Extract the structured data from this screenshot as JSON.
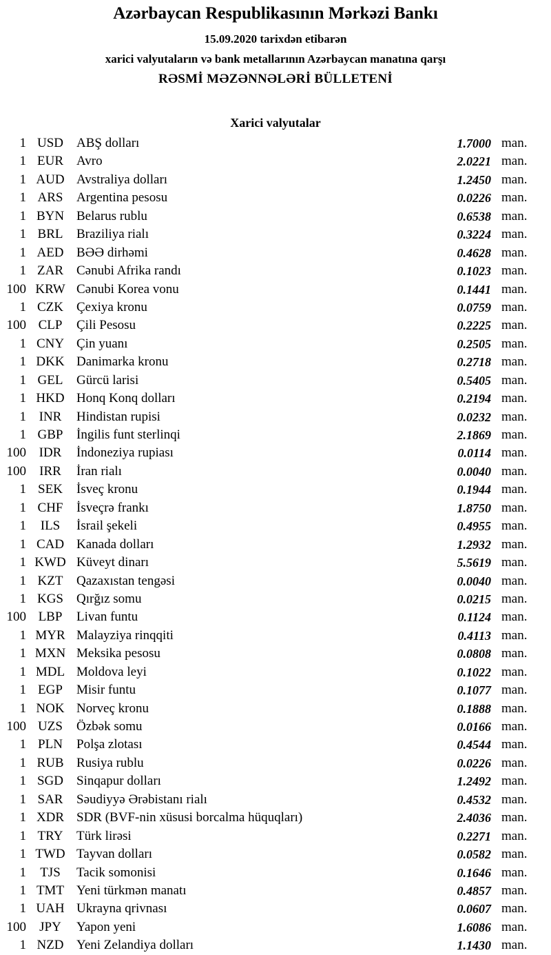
{
  "header": {
    "title": "Azərbaycan Respublikasının Mərkəzi Bankı",
    "date_line": "15.09.2020 tarixdən etibarən",
    "subtitle": "xarici valyutaların və bank metallarının Azərbaycan manatına qarşı",
    "bulletin": "RƏSMİ MƏZƏNNƏLƏRİ BÜLLETENİ"
  },
  "section": {
    "title": "Xarici valyutalar"
  },
  "unit": "man.",
  "rows": [
    {
      "qty": "1",
      "code": "USD",
      "name": "ABŞ dolları",
      "rate": "1.7000"
    },
    {
      "qty": "1",
      "code": "EUR",
      "name": "Avro",
      "rate": "2.0221"
    },
    {
      "qty": "1",
      "code": "AUD",
      "name": "Avstraliya dolları",
      "rate": "1.2450"
    },
    {
      "qty": "1",
      "code": "ARS",
      "name": "Argentina pesosu",
      "rate": "0.0226"
    },
    {
      "qty": "1",
      "code": "BYN",
      "name": "Belarus rublu",
      "rate": "0.6538"
    },
    {
      "qty": "1",
      "code": "BRL",
      "name": "Braziliya rialı",
      "rate": "0.3224"
    },
    {
      "qty": "1",
      "code": "AED",
      "name": "BƏƏ dirhəmi",
      "rate": "0.4628"
    },
    {
      "qty": "1",
      "code": "ZAR",
      "name": "Cənubi Afrika randı",
      "rate": "0.1023"
    },
    {
      "qty": "100",
      "code": "KRW",
      "name": "Cənubi Korea vonu",
      "rate": "0.1441"
    },
    {
      "qty": "1",
      "code": "CZK",
      "name": "Çexiya kronu",
      "rate": "0.0759"
    },
    {
      "qty": "100",
      "code": "CLP",
      "name": "Çili Pesosu",
      "rate": "0.2225"
    },
    {
      "qty": "1",
      "code": "CNY",
      "name": "Çin yuanı",
      "rate": "0.2505"
    },
    {
      "qty": "1",
      "code": "DKK",
      "name": "Danimarka kronu",
      "rate": "0.2718"
    },
    {
      "qty": "1",
      "code": "GEL",
      "name": "Gürcü larisi",
      "rate": "0.5405"
    },
    {
      "qty": "1",
      "code": "HKD",
      "name": "Honq Konq dolları",
      "rate": "0.2194"
    },
    {
      "qty": "1",
      "code": "INR",
      "name": "Hindistan rupisi",
      "rate": "0.0232"
    },
    {
      "qty": "1",
      "code": "GBP",
      "name": "İngilis funt sterlinqi",
      "rate": "2.1869"
    },
    {
      "qty": "100",
      "code": "IDR",
      "name": "İndoneziya rupiası",
      "rate": "0.0114"
    },
    {
      "qty": "100",
      "code": "IRR",
      "name": "İran rialı",
      "rate": "0.0040"
    },
    {
      "qty": "1",
      "code": "SEK",
      "name": "İsveç kronu",
      "rate": "0.1944"
    },
    {
      "qty": "1",
      "code": "CHF",
      "name": "İsveçrə frankı",
      "rate": "1.8750"
    },
    {
      "qty": "1",
      "code": "ILS",
      "name": "İsrail şekeli",
      "rate": "0.4955"
    },
    {
      "qty": "1",
      "code": "CAD",
      "name": "Kanada dolları",
      "rate": "1.2932"
    },
    {
      "qty": "1",
      "code": "KWD",
      "name": "Küveyt dinarı",
      "rate": "5.5619"
    },
    {
      "qty": "1",
      "code": "KZT",
      "name": "Qazaxıstan tengəsi",
      "rate": "0.0040"
    },
    {
      "qty": "1",
      "code": "KGS",
      "name": "Qırğız somu",
      "rate": "0.0215"
    },
    {
      "qty": "100",
      "code": "LBP",
      "name": "Livan funtu",
      "rate": "0.1124"
    },
    {
      "qty": "1",
      "code": "MYR",
      "name": "Malayziya rinqqiti",
      "rate": "0.4113"
    },
    {
      "qty": "1",
      "code": "MXN",
      "name": "Meksika pesosu",
      "rate": "0.0808"
    },
    {
      "qty": "1",
      "code": "MDL",
      "name": "Moldova leyi",
      "rate": "0.1022"
    },
    {
      "qty": "1",
      "code": "EGP",
      "name": "Misir funtu",
      "rate": "0.1077"
    },
    {
      "qty": "1",
      "code": "NOK",
      "name": "Norveç kronu",
      "rate": "0.1888"
    },
    {
      "qty": "100",
      "code": "UZS",
      "name": "Özbək somu",
      "rate": "0.0166"
    },
    {
      "qty": "1",
      "code": "PLN",
      "name": "Polşa zlotası",
      "rate": "0.4544"
    },
    {
      "qty": "1",
      "code": "RUB",
      "name": "Rusiya rublu",
      "rate": "0.0226"
    },
    {
      "qty": "1",
      "code": "SGD",
      "name": "Sinqapur dolları",
      "rate": "1.2492"
    },
    {
      "qty": "1",
      "code": "SAR",
      "name": "Səudiyyə Ərəbistanı rialı",
      "rate": "0.4532"
    },
    {
      "qty": "1",
      "code": "XDR",
      "name": "SDR (BVF-nin xüsusi borcalma hüquqları)",
      "rate": "2.4036"
    },
    {
      "qty": "1",
      "code": "TRY",
      "name": "Türk lirəsi",
      "rate": "0.2271"
    },
    {
      "qty": "1",
      "code": "TWD",
      "name": "Tayvan dolları",
      "rate": "0.0582"
    },
    {
      "qty": "1",
      "code": "TJS",
      "name": "Tacik somonisi",
      "rate": "0.1646"
    },
    {
      "qty": "1",
      "code": "TMT",
      "name": "Yeni türkmən manatı",
      "rate": "0.4857"
    },
    {
      "qty": "1",
      "code": "UAH",
      "name": "Ukrayna qrivnası",
      "rate": "0.0607"
    },
    {
      "qty": "100",
      "code": "JPY",
      "name": "Yapon yeni",
      "rate": "1.6086"
    },
    {
      "qty": "1",
      "code": "NZD",
      "name": "Yeni Zelandiya dolları",
      "rate": "1.1430"
    }
  ]
}
